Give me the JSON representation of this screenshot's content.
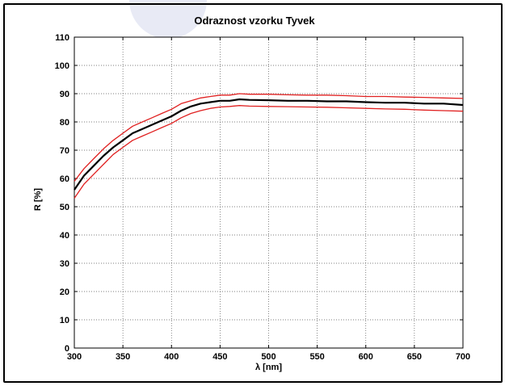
{
  "chart_data": {
    "type": "line",
    "title": "Odraznost vzorku Tyvek",
    "xlabel": "λ [nm]",
    "ylabel": "R [%]",
    "xlim": [
      300,
      700
    ],
    "ylim": [
      0,
      110
    ],
    "xticks": [
      "300",
      "350",
      "400",
      "450",
      "500",
      "550",
      "600",
      "650",
      "700"
    ],
    "yticks": [
      "0",
      "10",
      "20",
      "30",
      "40",
      "50",
      "60",
      "70",
      "80",
      "90",
      "100",
      "110"
    ],
    "grid": true,
    "x": [
      300,
      310,
      320,
      330,
      340,
      350,
      360,
      370,
      380,
      390,
      400,
      410,
      420,
      430,
      440,
      450,
      460,
      470,
      480,
      500,
      520,
      540,
      560,
      580,
      600,
      620,
      640,
      660,
      680,
      700
    ],
    "series": [
      {
        "color": "#000000",
        "values": [
          56,
          61,
          64.5,
          68,
          71,
          73.5,
          76,
          77.5,
          79,
          80.5,
          82,
          84,
          85.5,
          86.5,
          87,
          87.5,
          87.5,
          88,
          87.8,
          87.7,
          87.5,
          87.5,
          87.3,
          87.3,
          87,
          86.8,
          86.8,
          86.5,
          86.5,
          86
        ]
      },
      {
        "color": "#e02020",
        "values": [
          59,
          63.5,
          67,
          70.5,
          73.5,
          76,
          78.5,
          80,
          81.5,
          83,
          84.5,
          86.5,
          87.5,
          88.5,
          89,
          89.5,
          89.5,
          90,
          89.8,
          89.8,
          89.6,
          89.5,
          89.5,
          89.3,
          89,
          89,
          88.8,
          88.7,
          88.5,
          88.3
        ]
      },
      {
        "color": "#e02020",
        "values": [
          53,
          58,
          61.5,
          65,
          68.5,
          71,
          73.5,
          75,
          76.5,
          78,
          79.5,
          81.5,
          83,
          84,
          84.8,
          85.3,
          85.5,
          85.8,
          85.6,
          85.5,
          85.4,
          85.3,
          85.2,
          85,
          84.8,
          84.6,
          84.5,
          84.2,
          84,
          83.8
        ]
      }
    ]
  }
}
